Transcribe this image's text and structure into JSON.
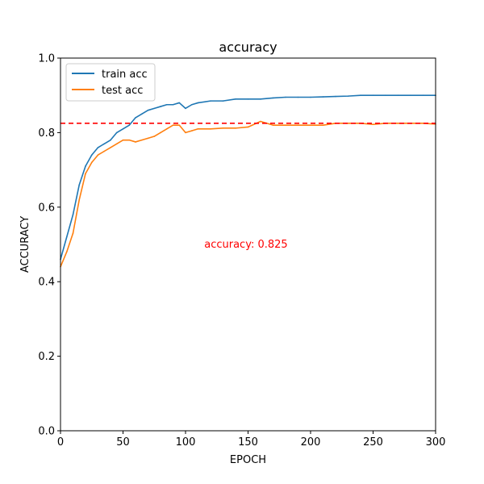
{
  "chart_data": {
    "type": "line",
    "title": "accuracy",
    "xlabel": "EPOCH",
    "ylabel": "ACCURACY",
    "xlim": [
      0,
      300
    ],
    "ylim": [
      0.0,
      1.0
    ],
    "xticks": [
      0,
      50,
      100,
      150,
      200,
      250,
      300
    ],
    "yticks": [
      0.0,
      0.2,
      0.4,
      0.6,
      0.8,
      1.0
    ],
    "xtick_labels": [
      "0",
      "50",
      "100",
      "150",
      "200",
      "250",
      "300"
    ],
    "ytick_labels": [
      "0.0",
      "0.2",
      "0.4",
      "0.6",
      "0.8",
      "1.0"
    ],
    "grid": false,
    "legend_position": "top-left",
    "x": [
      0,
      5,
      10,
      15,
      20,
      25,
      30,
      35,
      40,
      45,
      50,
      55,
      60,
      65,
      70,
      75,
      80,
      85,
      90,
      95,
      100,
      105,
      110,
      120,
      130,
      140,
      150,
      160,
      170,
      180,
      190,
      200,
      210,
      220,
      230,
      240,
      250,
      260,
      270,
      280,
      290,
      300
    ],
    "series": [
      {
        "name": "train acc",
        "color": "#1f77b4",
        "values": [
          0.46,
          0.52,
          0.58,
          0.66,
          0.71,
          0.74,
          0.76,
          0.77,
          0.78,
          0.8,
          0.81,
          0.82,
          0.84,
          0.85,
          0.86,
          0.865,
          0.87,
          0.875,
          0.875,
          0.88,
          0.865,
          0.875,
          0.88,
          0.885,
          0.885,
          0.89,
          0.89,
          0.89,
          0.893,
          0.895,
          0.895,
          0.895,
          0.896,
          0.897,
          0.898,
          0.9,
          0.9,
          0.9,
          0.9,
          0.9,
          0.9,
          0.9
        ]
      },
      {
        "name": "test acc",
        "color": "#ff7f0e",
        "values": [
          0.44,
          0.48,
          0.53,
          0.62,
          0.69,
          0.72,
          0.74,
          0.75,
          0.76,
          0.77,
          0.78,
          0.78,
          0.775,
          0.78,
          0.785,
          0.79,
          0.8,
          0.81,
          0.82,
          0.82,
          0.8,
          0.805,
          0.81,
          0.81,
          0.812,
          0.812,
          0.815,
          0.83,
          0.82,
          0.82,
          0.82,
          0.82,
          0.82,
          0.825,
          0.825,
          0.825,
          0.822,
          0.825,
          0.825,
          0.825,
          0.825,
          0.823
        ]
      }
    ],
    "reference_line": {
      "y": 0.825,
      "color": "#ff0000",
      "style": "dashed"
    },
    "annotation": {
      "text": "accuracy: 0.825",
      "x": 115,
      "y": 0.5,
      "color": "#ff0000"
    }
  }
}
